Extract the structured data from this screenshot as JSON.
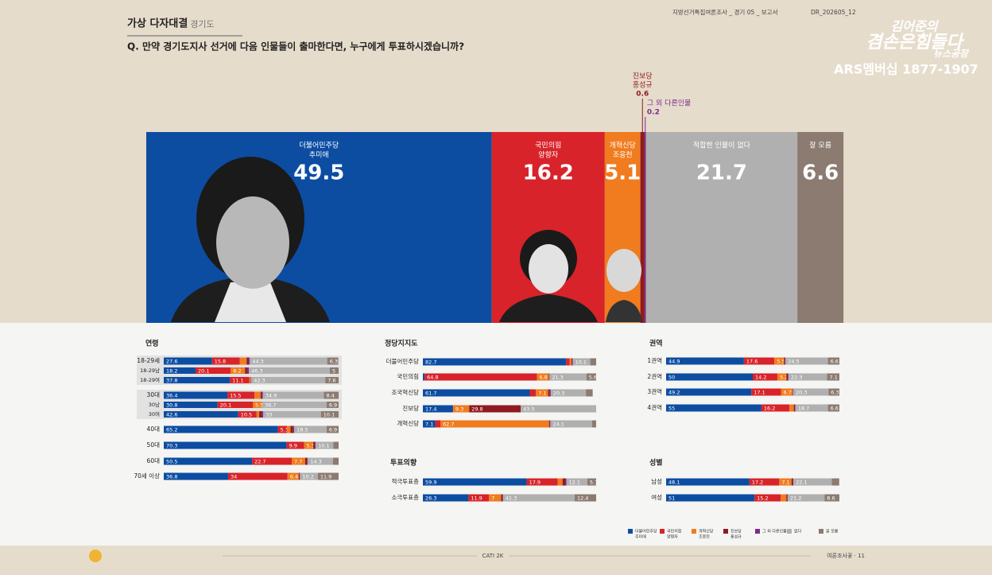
{
  "header": {
    "title": "가상 다자대결",
    "region": ": 경기도",
    "question": "Q. 만약 경기도지사 선거에 다음 인물들이 출마한다면, 누구에게 투표하시겠습니까?",
    "report": "지방선거특집여론조사 _ 경기 05 _ 보고서",
    "code": "DR_202605_12"
  },
  "logo": {
    "line1": "김어준의",
    "line2": "겸손은힘들다",
    "line3": "뉴스공장",
    "phone": "ARS멤버십 1877-1907"
  },
  "legend": [
    {
      "label": [
        "더불어민주당",
        "추미애"
      ],
      "color": "#0c4da2"
    },
    {
      "label": [
        "국민의힘",
        "양향자"
      ],
      "color": "#d8232a"
    },
    {
      "label": [
        "개혁신당",
        "조응천"
      ],
      "color": "#f07c1f"
    },
    {
      "label": [
        "진보당",
        "홍성규"
      ],
      "color": "#8e1b1f"
    },
    {
      "label": [
        "그 외 다른인물"
      ],
      "color": "#7b2d8e"
    },
    {
      "label": [
        "없다"
      ],
      "color": "#b0b0b0"
    },
    {
      "label": [
        "잘 모름"
      ],
      "color": "#8c7b70"
    }
  ],
  "chart_data": [
    {
      "type": "stacked-bar",
      "xlim": [
        0,
        100
      ],
      "series": [
        {
          "name": [
            "더불어민주당",
            "추미애"
          ],
          "color": "#0c4da2",
          "values": [
            49.5
          ]
        },
        {
          "name": [
            "국민의힘",
            "양향자"
          ],
          "color": "#d8232a",
          "values": [
            16.2
          ]
        },
        {
          "name": [
            "개혁신당",
            "조응천"
          ],
          "color": "#f07c1f",
          "values": [
            5.1
          ]
        },
        {
          "name": [
            "진보당",
            "홍성규"
          ],
          "color": "#8e1b1f",
          "values": [
            0.6
          ]
        },
        {
          "name": [
            "그 외 다른인물"
          ],
          "color": "#7b2d8e",
          "values": [
            0.2
          ]
        },
        {
          "name": [
            "적합한 인물이 없다"
          ],
          "color": "#b0b0b0",
          "values": [
            21.7
          ]
        },
        {
          "name": [
            "잘 모름"
          ],
          "color": "#8c7b70",
          "values": [
            6.6
          ]
        }
      ]
    },
    {
      "type": "stacked-bar",
      "title": "연령",
      "xlim": [
        0,
        100
      ],
      "categories": [
        "18-29세",
        "18-29남",
        "18-29여",
        "30대",
        "30남",
        "30여",
        "40대",
        "50대",
        "60대",
        "70세 이상"
      ],
      "values": [
        [
          27.6,
          15.8,
          4.0,
          1.0,
          0.8,
          44.3,
          6.3
        ],
        [
          18.2,
          20.1,
          8.2,
          1.2,
          1.0,
          46.3,
          5.0
        ],
        [
          37.8,
          11.1,
          0.8,
          0.2,
          0.2,
          42.3,
          7.6
        ],
        [
          36.4,
          15.5,
          3.5,
          0.8,
          0.5,
          34.9,
          8.4
        ],
        [
          30.8,
          20.1,
          5.5,
          0,
          0,
          36.7,
          6.9
        ],
        [
          42.6,
          10.5,
          1.5,
          1.5,
          0.8,
          33.0,
          10.1
        ],
        [
          65.2,
          5.3,
          2.0,
          1.5,
          0.6,
          18.5,
          6.9
        ],
        [
          70.3,
          9.9,
          5.3,
          1.0,
          0.4,
          10.1,
          3.0
        ],
        [
          50.5,
          22.7,
          7.7,
          1.0,
          0.5,
          14.3,
          3.3
        ],
        [
          36.8,
          34.0,
          6.4,
          0.5,
          0.2,
          10.2,
          11.9
        ]
      ]
    },
    {
      "type": "stacked-bar",
      "title": "정당지지도",
      "xlim": [
        0,
        100
      ],
      "categories": [
        "더불어민주당",
        "국민의힘",
        "조국혁신당",
        "진보당",
        "개혁신당"
      ],
      "values": [
        [
          82.7,
          2.0,
          1.0,
          0.5,
          0.3,
          10.1,
          3.4
        ],
        [
          1.0,
          64.8,
          6.8,
          0.3,
          0.2,
          21.3,
          5.6
        ],
        [
          61.7,
          3.5,
          7.1,
          1.0,
          0.5,
          20.3,
          3.9
        ],
        [
          17.4,
          0,
          9.3,
          29.8,
          0,
          43.5,
          0
        ],
        [
          7.1,
          3.0,
          62.7,
          0.5,
          0.3,
          24.1,
          2.3
        ]
      ]
    },
    {
      "type": "stacked-bar",
      "title": "투표의향",
      "xlim": [
        0,
        100
      ],
      "categories": [
        "적극투표층",
        "소극투표층"
      ],
      "values": [
        [
          59.9,
          17.9,
          2.8,
          1.5,
          0.7,
          12.1,
          5.1
        ],
        [
          26.3,
          11.9,
          7.0,
          0.8,
          0.3,
          41.3,
          12.4
        ]
      ]
    },
    {
      "type": "stacked-bar",
      "title": "권역",
      "xlim": [
        0,
        100
      ],
      "categories": [
        "1권역",
        "2권역",
        "3권역",
        "4권역"
      ],
      "values": [
        [
          44.9,
          17.6,
          5.5,
          0.6,
          0.3,
          24.5,
          6.6
        ],
        [
          50.0,
          14.2,
          5.2,
          0.8,
          0.4,
          22.3,
          7.1
        ],
        [
          49.2,
          17.1,
          6.7,
          0.3,
          0.1,
          20.3,
          6.3
        ],
        [
          55.0,
          16.2,
          2.5,
          0.7,
          0.3,
          18.7,
          6.6
        ]
      ]
    },
    {
      "type": "stacked-bar",
      "title": "성별",
      "xlim": [
        0,
        100
      ],
      "categories": [
        "남성",
        "여성"
      ],
      "values": [
        [
          48.1,
          17.2,
          7.1,
          0.8,
          0.3,
          22.1,
          4.3
        ],
        [
          51.0,
          15.2,
          3.2,
          0.5,
          0.3,
          21.2,
          8.6
        ]
      ]
    }
  ],
  "footer": {
    "method": "CATI 2K",
    "page": "여론조사꽃 · 11"
  }
}
